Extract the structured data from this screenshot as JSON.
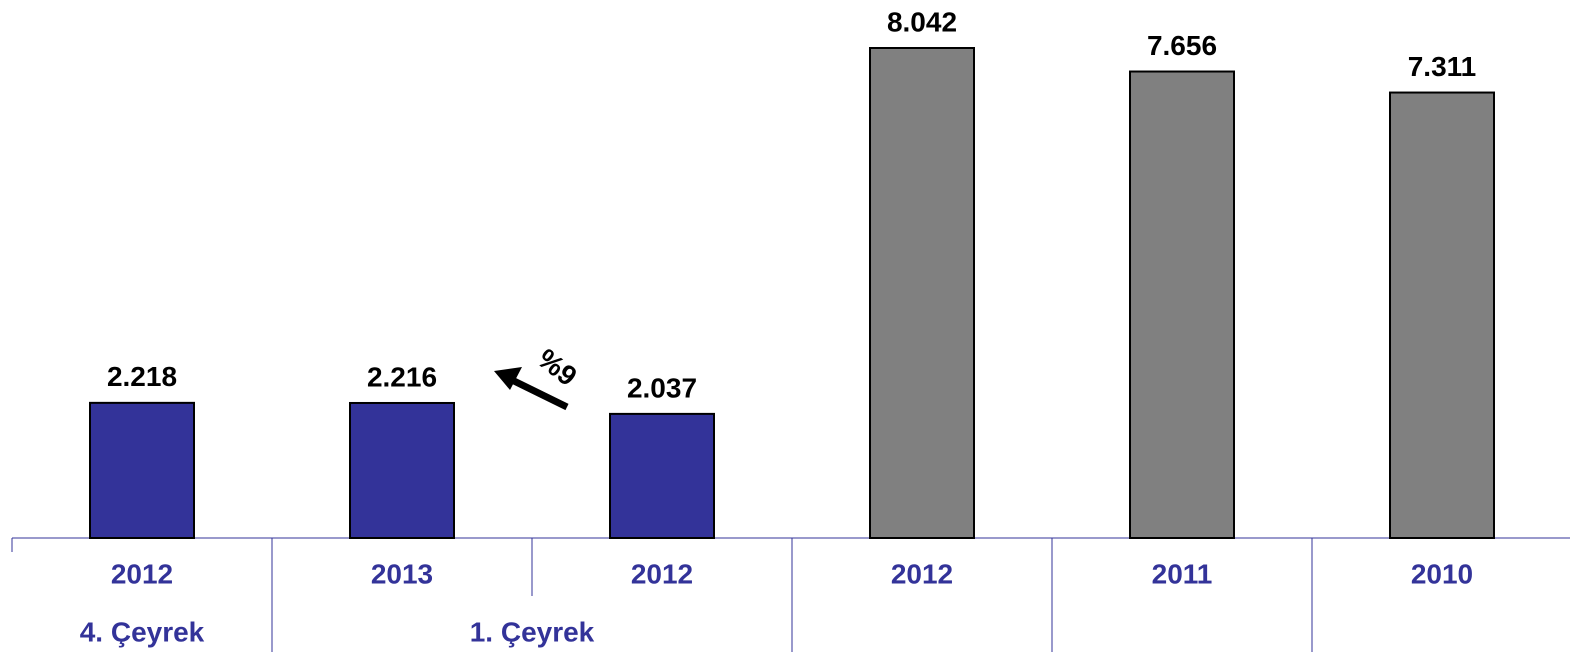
{
  "chart_data": {
    "type": "bar",
    "categories": [
      "2012",
      "2013",
      "2012",
      "2012",
      "2011",
      "2010"
    ],
    "groups": [
      "4. Çeyrek",
      "1. Çeyrek"
    ],
    "values": [
      2218,
      2216,
      2037,
      8042,
      7656,
      7311
    ],
    "value_labels": [
      "2.218",
      "2.216",
      "2.037",
      "8.042",
      "7.656",
      "7.311"
    ],
    "colors": [
      "#333399",
      "#333399",
      "#333399",
      "#808080",
      "#808080",
      "#808080"
    ],
    "annotations": [
      "%9"
    ]
  }
}
